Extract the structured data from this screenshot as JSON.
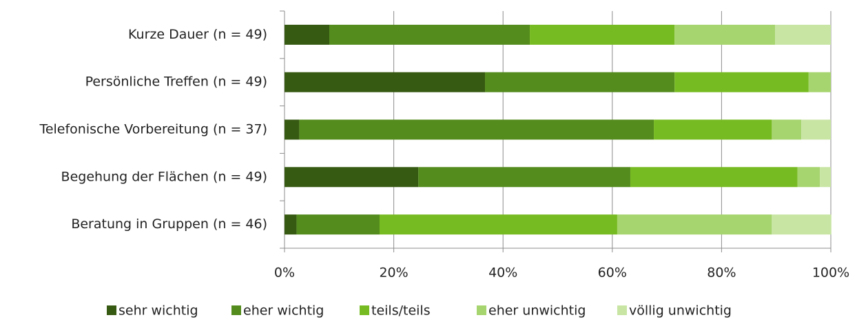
{
  "chart_data": {
    "type": "stacked_barh",
    "categories": [
      "Kurze Dauer (n = 49)",
      "Persönliche Treffen (n = 49)",
      "Telefonische Vorbereitung (n = 37)",
      "Begehung der Flächen (n = 49)",
      "Beratung in Gruppen (n = 46)"
    ],
    "series": [
      {
        "name": "sehr wichtig",
        "color": "#375a12",
        "values": [
          8.2,
          36.7,
          2.7,
          24.5,
          2.2
        ]
      },
      {
        "name": "eher wichtig",
        "color": "#548c1e",
        "values": [
          36.7,
          34.7,
          64.9,
          38.8,
          15.2
        ]
      },
      {
        "name": "teils/teils",
        "color": "#77bb22",
        "values": [
          26.5,
          24.5,
          21.6,
          30.6,
          43.5
        ]
      },
      {
        "name": "eher unwichtig",
        "color": "#a6d46e",
        "values": [
          18.4,
          4.1,
          5.4,
          4.1,
          28.3
        ]
      },
      {
        "name": "völlig unwichtig",
        "color": "#c8e5a4",
        "values": [
          10.2,
          0,
          5.4,
          2.0,
          10.9
        ]
      }
    ],
    "xlim": [
      0,
      100
    ],
    "xticks": [
      {
        "value": 0,
        "label": "0%"
      },
      {
        "value": 20,
        "label": "20%"
      },
      {
        "value": 40,
        "label": "40%"
      },
      {
        "value": 60,
        "label": "60%"
      },
      {
        "value": 80,
        "label": "80%"
      },
      {
        "value": 100,
        "label": "100%"
      }
    ],
    "grid": true,
    "legend": "bottom"
  }
}
